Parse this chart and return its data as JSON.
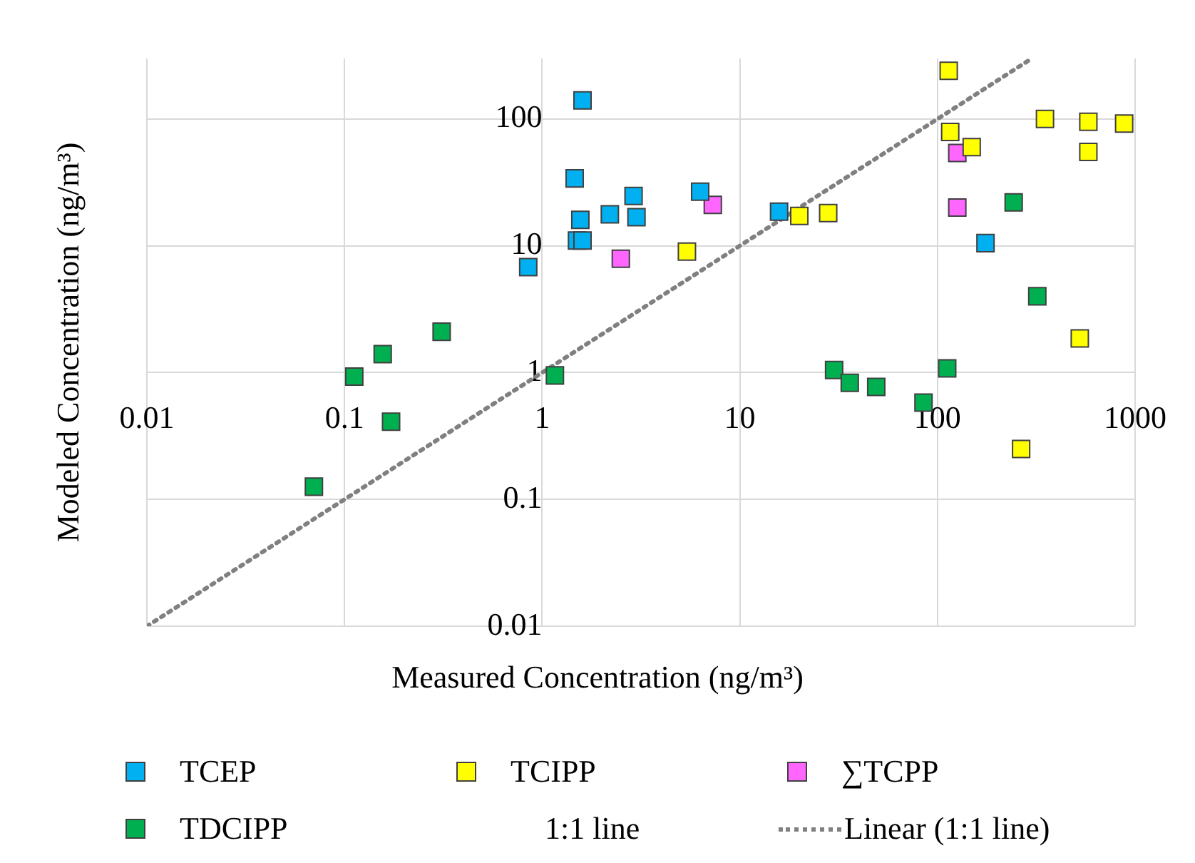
{
  "chart_data": {
    "type": "scatter",
    "xlabel": "Measured Concentration (ng/m³)",
    "ylabel": "Modeled Concentration (ng/m³)",
    "log": "xy",
    "xlim": [
      0.01,
      1000
    ],
    "ylim": [
      0.01,
      300
    ],
    "xticks": [
      0.01,
      0.1,
      1,
      10,
      100,
      1000
    ],
    "yticks": [
      0.01,
      0.1,
      1,
      10,
      100
    ],
    "grid": true,
    "legend": "bottom",
    "marker": "square",
    "annotations": [
      "1:1 line"
    ],
    "series": [
      {
        "name": "TCEP",
        "color": "#00b0f0",
        "x": [
          0.85,
          1.46,
          1.6,
          1.56,
          1.5,
          1.6,
          2.2,
          2.9,
          3.0,
          6.3,
          15.8,
          175
        ],
        "values": [
          6.8,
          34,
          140,
          16,
          11,
          11,
          17.7,
          24.7,
          16.8,
          26.7,
          18.6,
          10.5
        ]
      },
      {
        "name": "TCIPP",
        "color": "#ffff00",
        "x": [
          5.4,
          20,
          28,
          114,
          116,
          149,
          350,
          580,
          580,
          880,
          525,
          265
        ],
        "values": [
          9.0,
          17.2,
          18.1,
          240,
          79,
          60,
          100,
          95,
          55,
          92,
          1.86,
          0.25
        ]
      },
      {
        "name": "∑TCPP",
        "color": "#ff66ff",
        "x": [
          2.5,
          7.3,
          126,
          126
        ],
        "values": [
          7.9,
          21,
          54,
          20
        ]
      },
      {
        "name": "TDCIPP",
        "color": "#00b050",
        "x": [
          0.07,
          0.112,
          0.156,
          0.172,
          0.31,
          1.16,
          30,
          36,
          49,
          85,
          112,
          243,
          320
        ],
        "values": [
          0.126,
          0.93,
          1.4,
          0.41,
          2.1,
          0.95,
          1.05,
          0.83,
          0.77,
          0.58,
          1.08,
          22,
          4.0
        ]
      },
      {
        "name": "Linear (1:1 line)",
        "type": "line",
        "color": "#808080",
        "marker": "none",
        "line_style": "dotted",
        "x": [
          0.01,
          300
        ],
        "values": [
          0.01,
          300
        ]
      }
    ]
  }
}
